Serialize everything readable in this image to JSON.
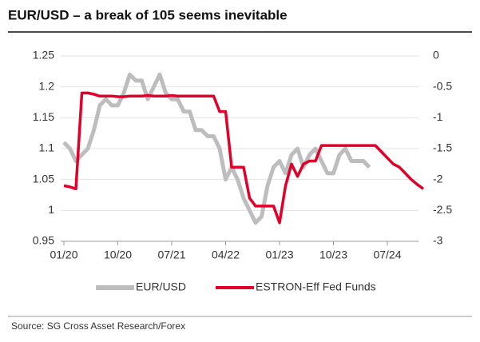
{
  "chart_data": {
    "type": "line",
    "title": "EUR/USD – a break of 105 seems inevitable",
    "source": "Source: SG Cross Asset Research/Forex",
    "x": [
      "2020-01",
      "2020-02",
      "2020-03",
      "2020-04",
      "2020-05",
      "2020-06",
      "2020-07",
      "2020-08",
      "2020-09",
      "2020-10",
      "2020-11",
      "2020-12",
      "2021-01",
      "2021-02",
      "2021-03",
      "2021-04",
      "2021-05",
      "2021-06",
      "2021-07",
      "2021-08",
      "2021-09",
      "2021-10",
      "2021-11",
      "2021-12",
      "2022-01",
      "2022-02",
      "2022-03",
      "2022-04",
      "2022-05",
      "2022-06",
      "2022-07",
      "2022-08",
      "2022-09",
      "2022-10",
      "2022-11",
      "2022-12",
      "2023-01",
      "2023-02",
      "2023-03",
      "2023-04",
      "2023-05",
      "2023-06",
      "2023-07",
      "2023-08",
      "2023-09",
      "2023-10",
      "2023-11",
      "2023-12",
      "2024-01",
      "2024-02",
      "2024-03",
      "2024-04",
      "2024-05",
      "2024-06",
      "2024-07",
      "2024-08",
      "2024-09",
      "2024-10",
      "2024-11",
      "2024-12",
      "2025-01"
    ],
    "xticks": [
      {
        "value": "2020-01",
        "label": "01/20"
      },
      {
        "value": "2020-10",
        "label": "10/20"
      },
      {
        "value": "2021-07",
        "label": "07/21"
      },
      {
        "value": "2022-04",
        "label": "04/22"
      },
      {
        "value": "2023-01",
        "label": "01/23"
      },
      {
        "value": "2023-10",
        "label": "10/23"
      },
      {
        "value": "2024-07",
        "label": "07/24"
      }
    ],
    "ylim": [
      0.95,
      1.25
    ],
    "yticks": [
      0.95,
      1,
      1.05,
      1.1,
      1.15,
      1.2,
      1.25
    ],
    "y2lim": [
      -3,
      0
    ],
    "y2ticks": [
      -3,
      -2.5,
      -2,
      -1.5,
      -1,
      -0.5,
      0
    ],
    "grid": true,
    "series": [
      {
        "name": "EUR/USD",
        "color": "#bdbdbd",
        "values": [
          1.11,
          1.1,
          1.08,
          1.09,
          1.1,
          1.13,
          1.17,
          1.18,
          1.17,
          1.17,
          1.19,
          1.22,
          1.21,
          1.21,
          1.18,
          1.2,
          1.22,
          1.19,
          1.18,
          1.18,
          1.16,
          1.16,
          1.13,
          1.13,
          1.12,
          1.12,
          1.1,
          1.05,
          1.07,
          1.05,
          1.02,
          1.0,
          0.98,
          0.99,
          1.04,
          1.07,
          1.08,
          1.06,
          1.09,
          1.1,
          1.07,
          1.09,
          1.1,
          1.08,
          1.06,
          1.06,
          1.09,
          1.1,
          1.08,
          1.08,
          1.08,
          1.07,
          null,
          null,
          null,
          null,
          null,
          null,
          null,
          null,
          null
        ]
      },
      {
        "name": "ESTRON-Eff Fed Funds",
        "color": "#e0002a",
        "axis": "y2",
        "values": [
          -2.1,
          -2.12,
          -2.15,
          -0.6,
          -0.6,
          -0.62,
          -0.65,
          -0.65,
          -0.65,
          -0.66,
          -0.66,
          -0.65,
          -0.65,
          -0.65,
          -0.64,
          -0.65,
          -0.65,
          -0.65,
          -0.64,
          -0.65,
          -0.65,
          -0.65,
          -0.65,
          -0.65,
          -0.65,
          -0.65,
          -0.9,
          -0.9,
          -1.8,
          -1.8,
          -1.8,
          -2.3,
          -2.43,
          -2.43,
          -2.43,
          -2.43,
          -2.7,
          -2.1,
          -1.75,
          -1.95,
          -1.75,
          -1.7,
          -1.7,
          -1.45,
          -1.45,
          -1.45,
          -1.45,
          -1.45,
          -1.45,
          -1.45,
          -1.45,
          -1.45,
          -1.45,
          -1.55,
          -1.65,
          -1.75,
          -1.8,
          -1.9,
          -2.0,
          -2.08,
          -2.15
        ]
      }
    ]
  }
}
